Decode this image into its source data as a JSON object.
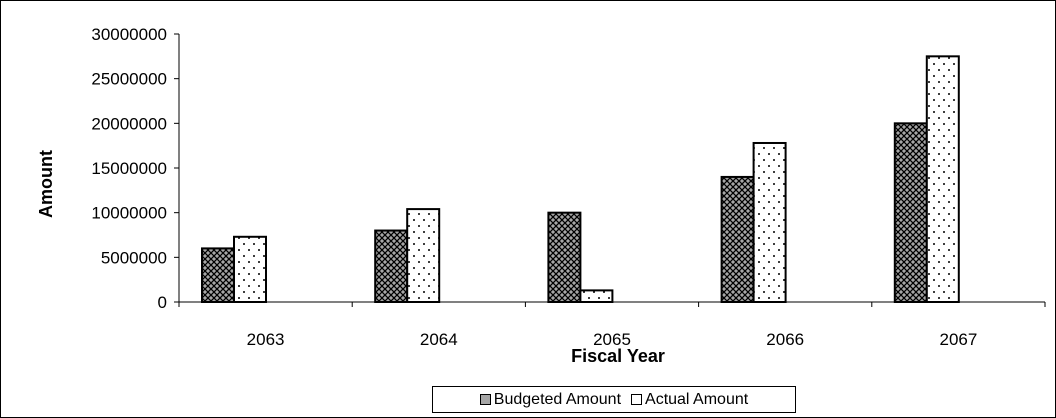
{
  "colors": {
    "budgeted_fill": "#a6a6a6",
    "budgeted_hatch": "#000000",
    "actual_fill": "#ffffff",
    "actual_dots": "#000000",
    "axis": "#000000"
  },
  "chart_data": {
    "type": "bar",
    "xlabel": "Fiscal Year",
    "ylabel": "Amount",
    "categories": [
      "2063",
      "2064",
      "2065",
      "2066",
      "2067"
    ],
    "series": [
      {
        "name": "Budgeted Amount",
        "values": [
          6000000,
          8000000,
          10000000,
          14000000,
          20000000
        ]
      },
      {
        "name": "Actual Amount",
        "values": [
          7300000,
          10400000,
          1300000,
          17800000,
          27500000
        ]
      }
    ],
    "ylim": [
      0,
      30000000
    ],
    "yticks": [
      "0",
      "5000000",
      "10000000",
      "15000000",
      "20000000",
      "25000000",
      "30000000"
    ],
    "grid": false,
    "legend_position": "bottom"
  }
}
